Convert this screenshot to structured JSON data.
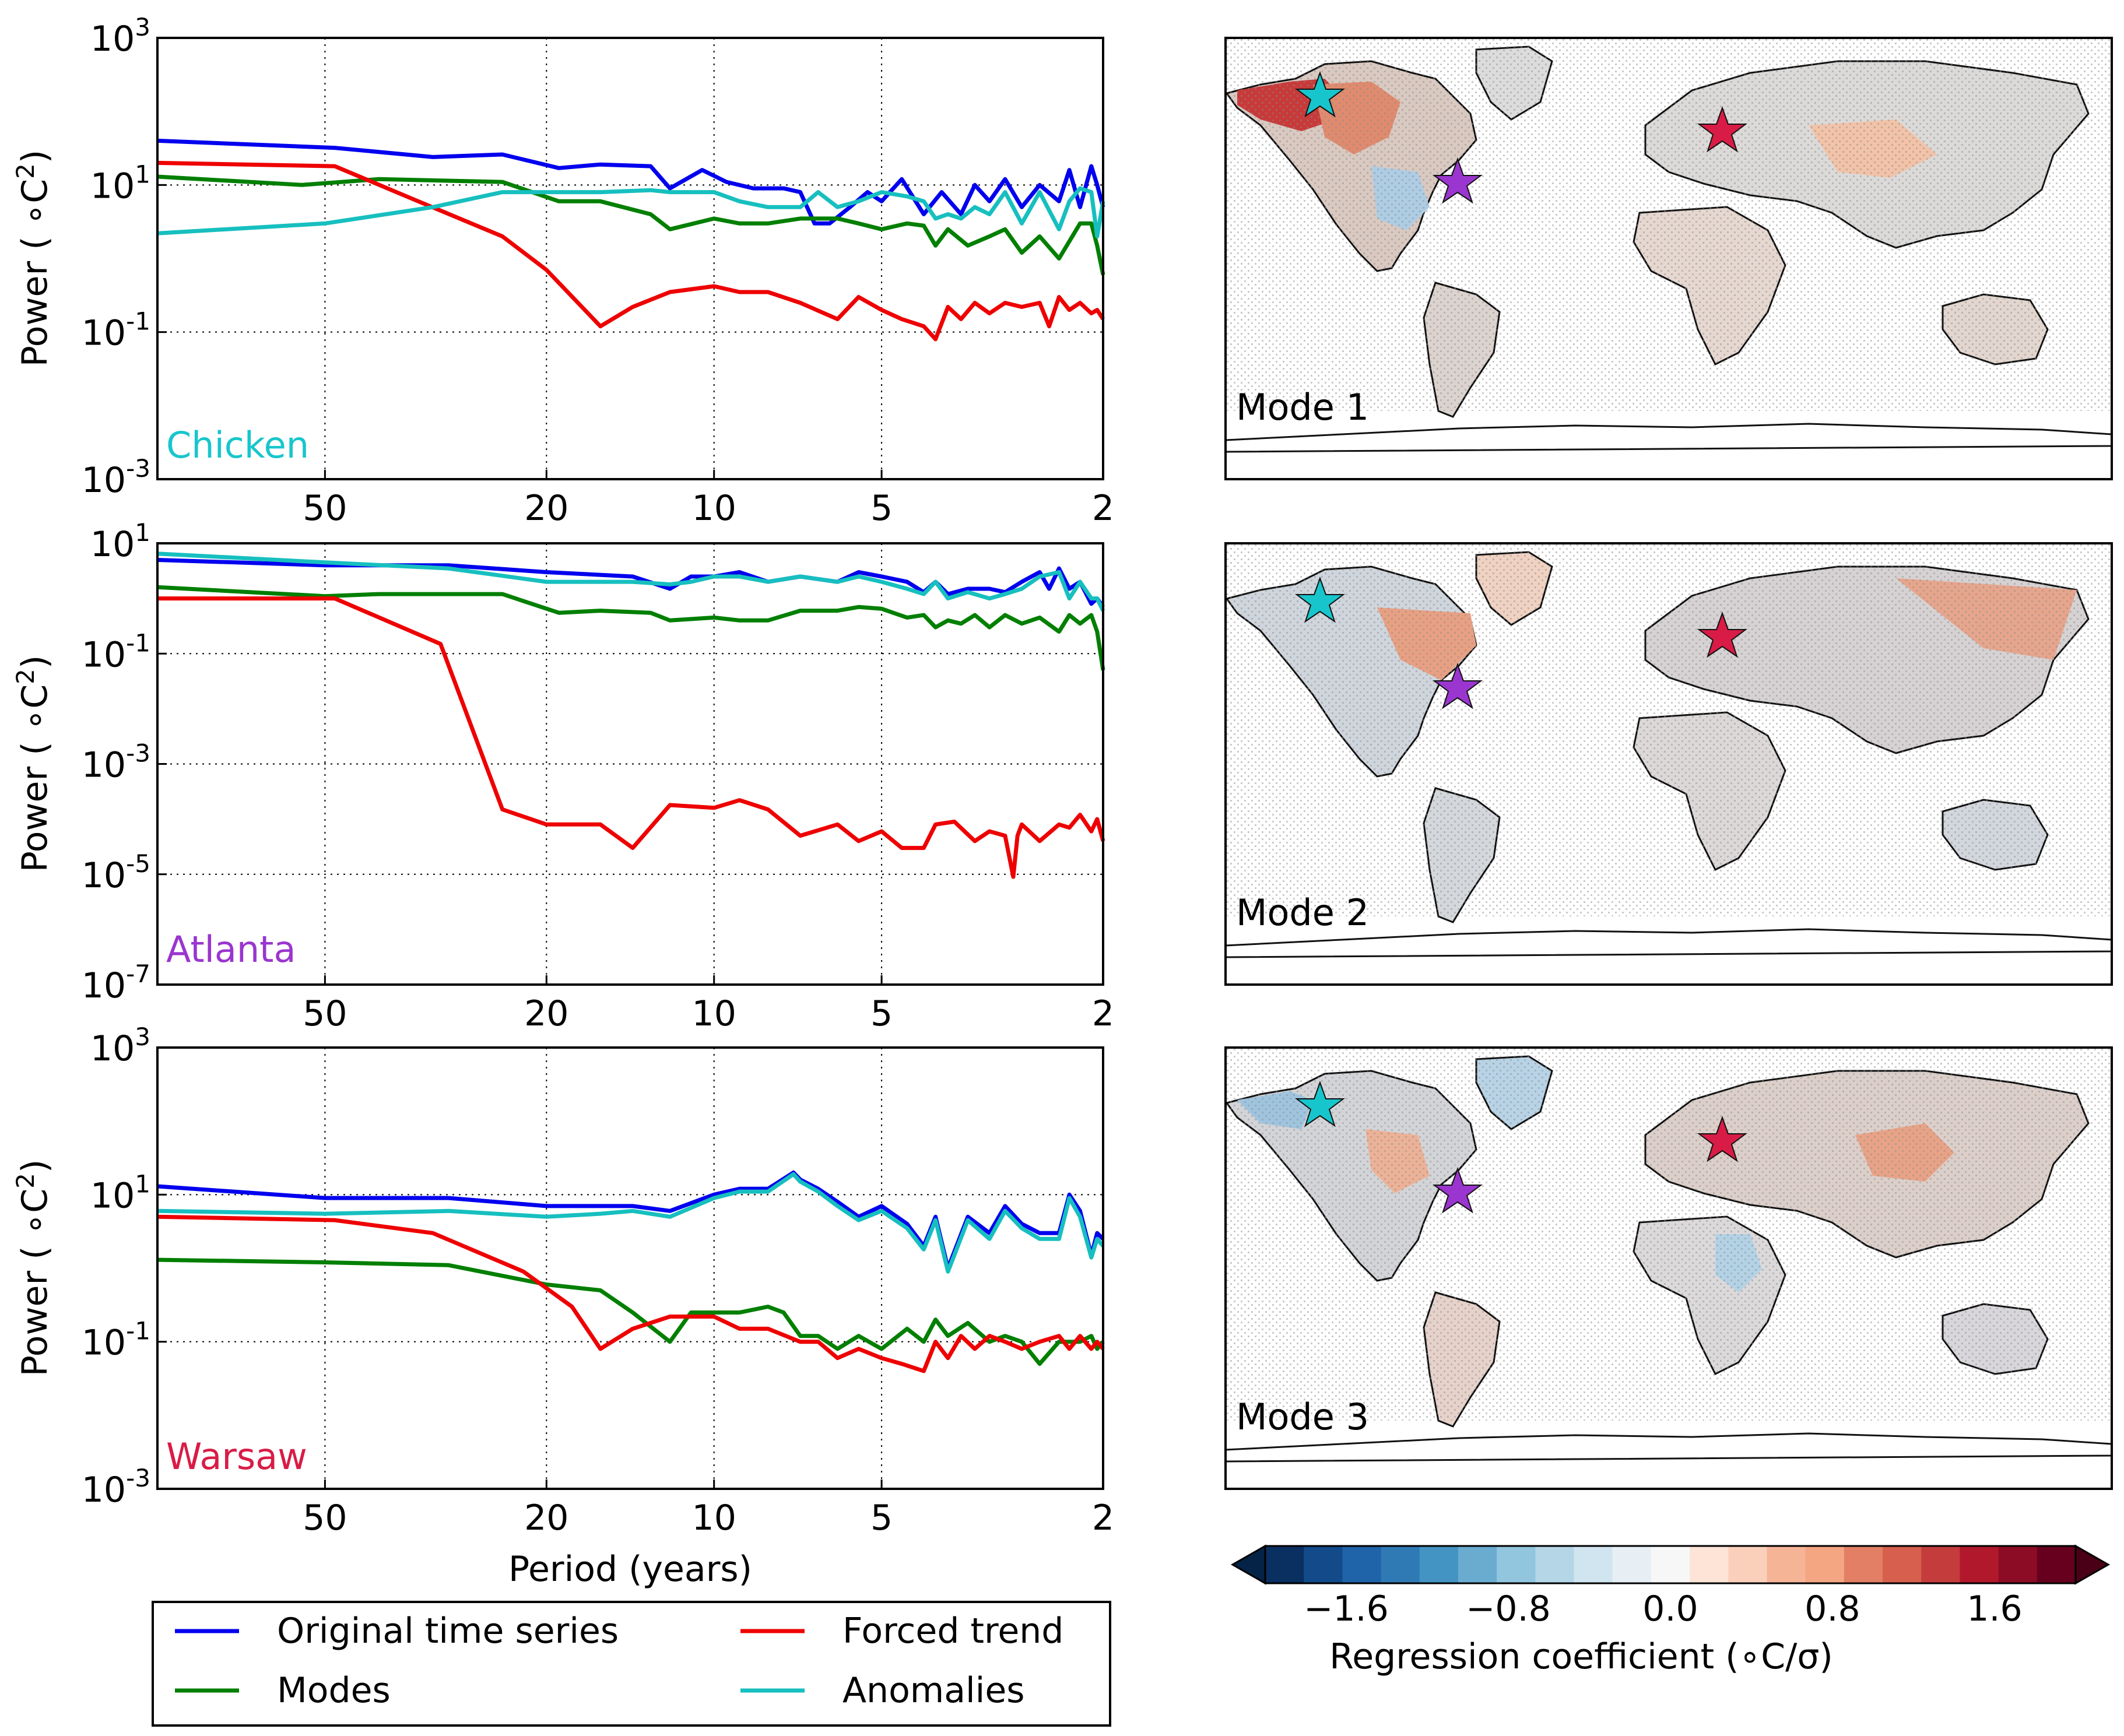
{
  "chart_data": [
    {
      "type": "line",
      "panel": "Chicken",
      "station_color": "#17c6cc",
      "xlabel": "",
      "ylabel": "Power (°C²)",
      "x_axis": "period (years), log scale, reversed",
      "xlim": [
        100,
        2
      ],
      "ylim_log10": [
        -3,
        3
      ],
      "x_ticks": [
        50,
        20,
        10,
        5,
        2
      ],
      "y_ticks_exp": [
        -3,
        -1,
        1,
        3
      ],
      "series": [
        {
          "name": "Original time series",
          "color": "#0000ee",
          "x": [
            100,
            48,
            32,
            24,
            19,
            16,
            13,
            12,
            10.5,
            9.5,
            8.5,
            7.5,
            7,
            6.6,
            6.2,
            5.7,
            5.3,
            5.0,
            4.6,
            4.2,
            3.9,
            3.6,
            3.4,
            3.2,
            3.0,
            2.8,
            2.6,
            2.4,
            2.3,
            2.2,
            2.1,
            2.05,
            2
          ],
          "y": [
            40,
            32,
            24,
            26,
            17,
            19,
            18,
            9,
            16,
            11,
            9,
            9,
            8,
            3,
            3,
            5,
            8,
            6,
            12,
            4,
            8,
            4,
            10,
            6,
            12,
            5,
            10,
            6,
            16,
            5,
            18,
            10,
            5
          ]
        },
        {
          "name": "Modes",
          "color": "#007f00",
          "x": [
            100,
            55,
            40,
            24,
            19,
            16,
            13,
            12,
            10,
            9,
            8,
            7,
            6,
            5.5,
            5,
            4.5,
            4.2,
            4,
            3.8,
            3.5,
            3.2,
            3.0,
            2.8,
            2.6,
            2.4,
            2.2,
            2.1,
            2.05,
            2
          ],
          "y": [
            13,
            10,
            12,
            11,
            6,
            6,
            4,
            2.5,
            3.5,
            3,
            3,
            3.5,
            3.5,
            3,
            2.5,
            3,
            2.8,
            1.5,
            2.5,
            1.5,
            2,
            2.5,
            1.2,
            2,
            1,
            3,
            3,
            1.5,
            0.6
          ]
        },
        {
          "name": "Forced trend",
          "color": "#ee0000",
          "x": [
            100,
            48,
            34,
            24,
            20,
            16,
            14,
            12,
            10,
            9,
            8,
            7,
            6,
            5.5,
            5,
            4.6,
            4.2,
            4.0,
            3.8,
            3.6,
            3.4,
            3.2,
            3.0,
            2.8,
            2.6,
            2.5,
            2.4,
            2.3,
            2.2,
            2.1,
            2.05,
            2
          ],
          "y": [
            20,
            18,
            6,
            2,
            0.7,
            0.12,
            0.22,
            0.35,
            0.42,
            0.35,
            0.35,
            0.25,
            0.15,
            0.3,
            0.2,
            0.15,
            0.12,
            0.08,
            0.22,
            0.15,
            0.25,
            0.18,
            0.25,
            0.22,
            0.25,
            0.12,
            0.3,
            0.2,
            0.25,
            0.18,
            0.2,
            0.15
          ]
        },
        {
          "name": "Anomalies",
          "color": "#17bfbf",
          "x": [
            100,
            50,
            32,
            24,
            20,
            16,
            13,
            12,
            10,
            9,
            8,
            7,
            6.5,
            6,
            5.5,
            5,
            4.5,
            4.2,
            4.0,
            3.8,
            3.6,
            3.4,
            3.2,
            3.0,
            2.8,
            2.6,
            2.4,
            2.3,
            2.2,
            2.1,
            2.05,
            2
          ],
          "y": [
            2.2,
            3,
            5,
            8,
            8,
            8,
            8.5,
            8,
            8,
            6,
            5,
            5,
            8,
            5,
            6,
            8,
            7,
            6,
            3.5,
            4,
            3.5,
            5,
            4,
            8,
            3,
            8,
            2.5,
            6,
            9,
            8,
            2,
            6
          ]
        }
      ]
    },
    {
      "type": "line",
      "panel": "Atlanta",
      "station_color": "#9a35cf",
      "xlabel": "",
      "ylabel": "Power (°C²)",
      "x_axis": "period (years), log scale, reversed",
      "xlim": [
        100,
        2
      ],
      "ylim_log10": [
        -7,
        1
      ],
      "x_ticks": [
        50,
        20,
        10,
        5,
        2
      ],
      "y_ticks_exp": [
        -7,
        -5,
        -3,
        -1,
        1
      ],
      "series": [
        {
          "name": "Original time series",
          "color": "#0000ee",
          "x": [
            100,
            50,
            30,
            20,
            14,
            12,
            11,
            10,
            9,
            8,
            7,
            6,
            5.5,
            5,
            4.5,
            4.2,
            4,
            3.8,
            3.5,
            3.2,
            3.0,
            2.8,
            2.6,
            2.5,
            2.4,
            2.3,
            2.2,
            2.1,
            2.05,
            2
          ],
          "y": [
            5,
            4,
            4,
            3,
            2.5,
            1.5,
            2.5,
            2.5,
            3,
            2,
            2.5,
            2,
            3,
            2.5,
            2,
            1.3,
            2,
            1.2,
            1.5,
            1.5,
            1.3,
            2,
            3,
            1.5,
            3.5,
            1.5,
            2,
            0.8,
            1,
            0.7
          ]
        },
        {
          "name": "Modes",
          "color": "#007f00",
          "x": [
            100,
            50,
            40,
            24,
            19,
            16,
            13,
            12,
            10,
            9,
            8,
            7,
            6,
            5.5,
            5,
            4.5,
            4.2,
            4,
            3.8,
            3.6,
            3.4,
            3.2,
            3.0,
            2.8,
            2.6,
            2.4,
            2.3,
            2.2,
            2.1,
            2.05,
            2
          ],
          "y": [
            1.6,
            1.1,
            1.2,
            1.2,
            0.55,
            0.6,
            0.55,
            0.4,
            0.45,
            0.4,
            0.4,
            0.6,
            0.6,
            0.7,
            0.65,
            0.45,
            0.5,
            0.3,
            0.4,
            0.35,
            0.5,
            0.3,
            0.5,
            0.35,
            0.45,
            0.25,
            0.5,
            0.35,
            0.5,
            0.25,
            0.05
          ]
        },
        {
          "name": "Forced trend",
          "color": "#ee0000",
          "x": [
            100,
            48,
            31,
            24,
            20,
            16,
            14,
            12,
            10,
            9,
            8,
            7,
            6,
            5.5,
            5,
            4.6,
            4.2,
            4,
            3.7,
            3.4,
            3.2,
            3.0,
            2.9,
            2.85,
            2.8,
            2.6,
            2.4,
            2.3,
            2.2,
            2.1,
            2.05,
            2
          ],
          "y": [
            1,
            1,
            0.15,
            0.00015,
            8e-05,
            8e-05,
            3e-05,
            0.00018,
            0.00016,
            0.00022,
            0.00015,
            5e-05,
            8e-05,
            4e-05,
            6e-05,
            3e-05,
            3e-05,
            8e-05,
            9e-05,
            4e-05,
            6e-05,
            5e-05,
            9e-06,
            5e-05,
            8e-05,
            4e-05,
            8e-05,
            7e-05,
            0.00012,
            6e-05,
            0.0001,
            4e-05
          ]
        },
        {
          "name": "Anomalies",
          "color": "#17bfbf",
          "x": [
            100,
            50,
            30,
            20,
            16,
            14,
            12,
            11,
            10,
            9,
            8,
            7,
            6,
            5.5,
            5,
            4.5,
            4.2,
            4,
            3.8,
            3.5,
            3.2,
            3.0,
            2.8,
            2.6,
            2.4,
            2.3,
            2.2,
            2.1,
            2.05,
            2
          ],
          "y": [
            6.5,
            4.5,
            3.5,
            2,
            2,
            2,
            1.8,
            2,
            2.5,
            2.5,
            2,
            2.5,
            2,
            2.5,
            2,
            1.5,
            1.2,
            2,
            1,
            1.3,
            1,
            1.2,
            1.5,
            2.5,
            3,
            1,
            2,
            1,
            1,
            0.6
          ]
        }
      ]
    },
    {
      "type": "line",
      "panel": "Warsaw",
      "station_color": "#d81c46",
      "xlabel": "Period (years)",
      "ylabel": "Power (°C²)",
      "x_axis": "period (years), log scale, reversed",
      "xlim": [
        100,
        2
      ],
      "ylim_log10": [
        -3,
        3
      ],
      "x_ticks": [
        50,
        20,
        10,
        5,
        2
      ],
      "y_ticks_exp": [
        -3,
        -1,
        1,
        3
      ],
      "series": [
        {
          "name": "Original time series",
          "color": "#0000ee",
          "x": [
            100,
            50,
            30,
            20,
            16,
            14,
            12,
            10,
            9,
            8,
            7.2,
            7,
            6.5,
            6,
            5.5,
            5,
            4.5,
            4.2,
            4.0,
            3.8,
            3.5,
            3.2,
            3.0,
            2.8,
            2.6,
            2.4,
            2.3,
            2.2,
            2.1,
            2.05,
            2
          ],
          "y": [
            13,
            9,
            9,
            7,
            7,
            7,
            6,
            10,
            12,
            12,
            20,
            16,
            12,
            8,
            5,
            7,
            4,
            2,
            5,
            1,
            5,
            3,
            7,
            4,
            3,
            3,
            10,
            6,
            1.5,
            3,
            2.5
          ]
        },
        {
          "name": "Modes",
          "color": "#007f00",
          "x": [
            100,
            50,
            30,
            20,
            16,
            14,
            12,
            11,
            10,
            9,
            8,
            7.5,
            7,
            6.5,
            6,
            5.5,
            5,
            4.5,
            4.2,
            4.0,
            3.8,
            3.5,
            3.2,
            3.0,
            2.8,
            2.6,
            2.4,
            2.2,
            2.1,
            2.05,
            2
          ],
          "y": [
            1.3,
            1.2,
            1.1,
            0.6,
            0.5,
            0.25,
            0.1,
            0.25,
            0.25,
            0.25,
            0.3,
            0.25,
            0.12,
            0.12,
            0.08,
            0.12,
            0.08,
            0.15,
            0.1,
            0.2,
            0.12,
            0.18,
            0.1,
            0.12,
            0.1,
            0.05,
            0.1,
            0.1,
            0.12,
            0.08,
            0.1
          ]
        },
        {
          "name": "Forced trend",
          "color": "#ee0000",
          "x": [
            100,
            48,
            32,
            22,
            18,
            16,
            14,
            12,
            10,
            9,
            8,
            7,
            6.5,
            6,
            5.5,
            5,
            4.6,
            4.2,
            4.0,
            3.8,
            3.6,
            3.4,
            3.2,
            3.0,
            2.8,
            2.6,
            2.4,
            2.3,
            2.2,
            2.1,
            2.05,
            2
          ],
          "y": [
            5,
            4.5,
            3,
            0.9,
            0.3,
            0.08,
            0.15,
            0.22,
            0.22,
            0.15,
            0.15,
            0.1,
            0.1,
            0.06,
            0.08,
            0.06,
            0.05,
            0.04,
            0.1,
            0.06,
            0.12,
            0.08,
            0.12,
            0.1,
            0.08,
            0.1,
            0.12,
            0.08,
            0.12,
            0.08,
            0.1,
            0.08
          ]
        },
        {
          "name": "Anomalies",
          "color": "#17bfbf",
          "x": [
            100,
            50,
            30,
            20,
            16,
            14,
            12,
            10,
            9,
            8,
            7.2,
            7,
            6.5,
            6,
            5.5,
            5,
            4.5,
            4.2,
            4.0,
            3.8,
            3.5,
            3.2,
            3.0,
            2.8,
            2.6,
            2.4,
            2.3,
            2.2,
            2.1,
            2.05,
            2
          ],
          "y": [
            6,
            5.5,
            6,
            5,
            5.5,
            6,
            5,
            9,
            11,
            11,
            19,
            15,
            11,
            7,
            4.5,
            6,
            3.5,
            1.8,
            4.5,
            0.9,
            4.5,
            2.5,
            6,
            3.5,
            2.5,
            2.5,
            9,
            5,
            1.4,
            2.5,
            2
          ]
        }
      ]
    },
    {
      "type": "heatmap",
      "panel": "Mode 1",
      "legend": {
        "pos": "bottom-right",
        "labels": []
      },
      "stations": [
        {
          "name": "Chicken",
          "color": "#17c6cc"
        },
        {
          "name": "Atlanta",
          "color": "#9a35cf"
        },
        {
          "name": "Warsaw",
          "color": "#d81c46"
        }
      ]
    },
    {
      "type": "heatmap",
      "panel": "Mode 2"
    },
    {
      "type": "heatmap",
      "panel": "Mode 3"
    },
    {
      "type": "colorbar",
      "label": "Regression coefficient (°C/σ)",
      "vmin": -2.0,
      "vmax": 2.0,
      "step": 0.2,
      "tick_values": [
        -1.6,
        -0.8,
        0.0,
        0.8,
        1.6
      ],
      "tick_labels": [
        "−1.6",
        "−0.8",
        "0.0",
        "0.8",
        "1.6"
      ],
      "colors": [
        "#0a2f61",
        "#134a8a",
        "#1f63a8",
        "#2f79b5",
        "#4393c3",
        "#6aabd0",
        "#92c5de",
        "#b4d6e7",
        "#d1e5f0",
        "#e8eff4",
        "#f7f7f7",
        "#fde4d7",
        "#fbd0bb",
        "#f6b497",
        "#f4a582",
        "#e27f65",
        "#d6604d",
        "#c43c3c",
        "#b2182b",
        "#8d0c25",
        "#67001f"
      ]
    }
  ],
  "legend": {
    "entries": [
      {
        "label": "Original time series",
        "color": "#0000ee"
      },
      {
        "label": "Forced trend",
        "color": "#ee0000"
      },
      {
        "label": "Modes",
        "color": "#007f00"
      },
      {
        "label": "Anomalies",
        "color": "#17bfbf"
      }
    ]
  },
  "labels": {
    "station_1": "Chicken",
    "station_2": "Atlanta",
    "station_3": "Warsaw",
    "mode_1": "Mode 1",
    "mode_2": "Mode 2",
    "mode_3": "Mode 3",
    "xlabel": "Period (years)",
    "ylabel_text": "Power ( ∘C",
    "ylabel_sup": "2",
    "ylabel_close": ")",
    "x_tick_labels": [
      "50",
      "20",
      "10",
      "5",
      "2"
    ],
    "exp_base": "10",
    "colorbar_label": "Regression coefficient (∘C/σ)"
  }
}
